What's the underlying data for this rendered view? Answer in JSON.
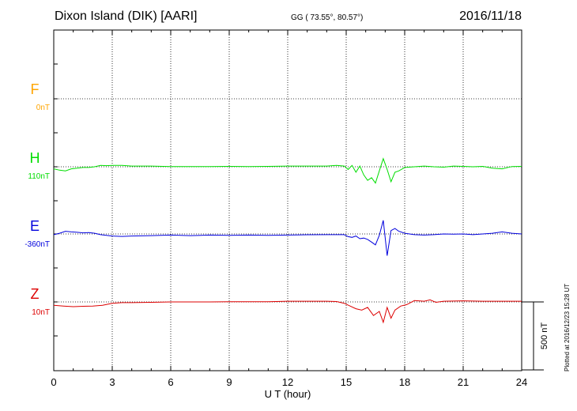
{
  "header": {
    "station": "Dixon Island (DIK)  [AARI]",
    "coords": "GG ( 73.55°,  80.57°)",
    "date": "2016/11/18"
  },
  "footer": {
    "plotted": "Plotted at 2016/12/23 15:28 UT"
  },
  "chart_data": {
    "type": "line",
    "xlabel": "U T (hour)",
    "xlim": [
      0,
      24
    ],
    "xticks": [
      0,
      3,
      6,
      9,
      12,
      15,
      18,
      21,
      24
    ],
    "yunit": "nT",
    "scale_bar": {
      "value": 500,
      "label": "500 nT"
    },
    "grid": true,
    "series": [
      {
        "name": "F",
        "baseline_label": "0nT",
        "color": "#ffa500",
        "x": [],
        "values": []
      },
      {
        "name": "H",
        "baseline_label": "110nT",
        "color": "#00dd00",
        "x": [
          0,
          0.3,
          0.6,
          0.9,
          1.2,
          1.5,
          1.8,
          2.1,
          2.4,
          2.7,
          3,
          3.5,
          4,
          5,
          6,
          7,
          8,
          9,
          10,
          11,
          12,
          13,
          14,
          14.5,
          14.9,
          15.1,
          15.3,
          15.5,
          15.7,
          15.9,
          16.1,
          16.3,
          16.5,
          16.7,
          16.9,
          17.1,
          17.3,
          17.5,
          17.7,
          18,
          18.5,
          19,
          19.5,
          20,
          20.5,
          21,
          21.5,
          22,
          22.5,
          23,
          23.5,
          24
        ],
        "values": [
          -15,
          -25,
          -30,
          -15,
          -10,
          -5,
          -5,
          0,
          10,
          8,
          10,
          10,
          5,
          5,
          2,
          2,
          2,
          3,
          2,
          3,
          5,
          5,
          5,
          10,
          5,
          -20,
          10,
          -40,
          5,
          -60,
          -100,
          -80,
          -120,
          -30,
          60,
          -20,
          -110,
          -40,
          -30,
          -5,
          0,
          5,
          0,
          -3,
          5,
          3,
          0,
          3,
          -10,
          -15,
          2,
          3
        ]
      },
      {
        "name": "E",
        "baseline_label": "-360nT",
        "color": "#0000dd",
        "x": [
          0,
          0.3,
          0.6,
          0.9,
          1.2,
          1.5,
          1.8,
          2.1,
          2.4,
          2.7,
          3,
          3.5,
          4,
          5,
          6,
          7,
          8,
          9,
          10,
          11,
          12,
          13,
          14,
          14.5,
          14.9,
          15.1,
          15.3,
          15.5,
          15.7,
          15.9,
          16.1,
          16.3,
          16.5,
          16.7,
          16.9,
          17.1,
          17.3,
          17.5,
          17.7,
          18,
          18.5,
          19,
          19.5,
          20,
          20.5,
          21,
          21.5,
          22,
          22.5,
          23,
          23.5,
          24
        ],
        "values": [
          -5,
          5,
          20,
          15,
          12,
          8,
          10,
          5,
          -5,
          -10,
          -15,
          -18,
          -15,
          -12,
          -8,
          -12,
          -8,
          -10,
          -8,
          -10,
          -8,
          -6,
          -5,
          -5,
          -5,
          -20,
          -25,
          -15,
          -35,
          -30,
          -40,
          -60,
          -80,
          -10,
          100,
          -160,
          25,
          40,
          20,
          5,
          -5,
          -8,
          -5,
          0,
          -2,
          0,
          -5,
          0,
          5,
          15,
          5,
          0
        ]
      },
      {
        "name": "Z",
        "baseline_label": "10nT",
        "color": "#dd0000",
        "x": [
          0,
          0.5,
          1,
          1.5,
          2,
          2.5,
          3,
          3.5,
          4,
          5,
          6,
          7,
          8,
          9,
          10,
          11,
          12,
          13,
          14,
          14.5,
          14.9,
          15.2,
          15.5,
          15.8,
          16.1,
          16.4,
          16.7,
          16.9,
          17.1,
          17.3,
          17.5,
          17.8,
          18.1,
          18.5,
          19,
          19.3,
          19.6,
          20,
          21,
          22,
          23,
          24
        ],
        "values": [
          -25,
          -30,
          -35,
          -32,
          -30,
          -25,
          -10,
          -5,
          -5,
          -3,
          0,
          0,
          0,
          2,
          2,
          2,
          5,
          5,
          5,
          3,
          -10,
          -30,
          -50,
          -60,
          -40,
          -100,
          -70,
          -150,
          -40,
          -120,
          -60,
          -30,
          -20,
          10,
          5,
          15,
          -3,
          5,
          8,
          5,
          5,
          5
        ]
      }
    ]
  }
}
